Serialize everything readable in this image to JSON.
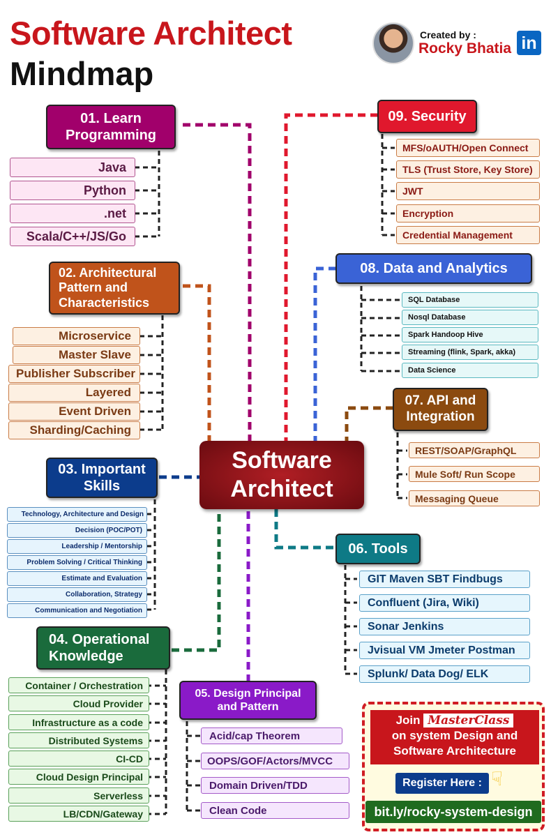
{
  "header": {
    "title_line1": "Software Architect",
    "title_line2": "Mindmap",
    "created_by": "Created by :",
    "author": "Rocky Bhatia",
    "linkedin": "in"
  },
  "center": {
    "line1": "Software",
    "line2": "Architect"
  },
  "colors": {
    "red": "#c8161c",
    "purple": "#a1006b",
    "orange": "#c0531b",
    "navy": "#0c3c8c",
    "green": "#1a6b3c",
    "violet": "#8a1ac8",
    "teal": "#0e7a86",
    "brown": "#8b4a0f",
    "blue": "#3a63d6"
  },
  "branches": {
    "b1": {
      "title": "01. Learn Programming",
      "items": [
        "Java",
        "Python",
        ".net",
        "Scala/C++/JS/Go"
      ]
    },
    "b2": {
      "title": "02. Architectural Pattern and Characteristics",
      "items": [
        "Microservice",
        "Master Slave",
        "Publisher Subscriber",
        "Layered",
        "Event Driven",
        "Sharding/Caching"
      ]
    },
    "b3": {
      "title": "03. Important Skills",
      "items": [
        "Technology, Architecture and Design",
        "Decision (POC/POT)",
        "Leadership / Mentorship",
        "Problem Solving / Critical Thinking",
        "Estimate and Evaluation",
        "Collaboration, Strategy",
        "Communication and Negotiation"
      ]
    },
    "b4": {
      "title": "04. Operational Knowledge",
      "items": [
        "Container / Orchestration",
        "Cloud Provider",
        "Infrastructure as a code",
        "Distributed Systems",
        "CI-CD",
        "Cloud Design Principal",
        "Serverless",
        "LB/CDN/Gateway"
      ]
    },
    "b5": {
      "title": "05. Design Principal and Pattern",
      "items": [
        "Acid/cap Theorem",
        "OOPS/GOF/Actors/MVCC",
        "Domain Driven/TDD",
        "Clean Code"
      ]
    },
    "b6": {
      "title": "06. Tools",
      "items": [
        "GIT Maven SBT Findbugs",
        "Confluent (Jira, Wiki)",
        "Sonar Jenkins",
        "Jvisual VM Jmeter Postman",
        "Splunk/ Data Dog/ ELK"
      ]
    },
    "b7": {
      "title": "07. API and Integration",
      "items": [
        "REST/SOAP/GraphQL",
        "Mule Soft/ Run Scope",
        "Messaging Queue"
      ]
    },
    "b8": {
      "title": "08. Data and Analytics",
      "items": [
        "SQL Database",
        "Nosql Database",
        "Spark Handoop Hive",
        "Streaming (flink, Spark, akka)",
        "Data Science"
      ]
    },
    "b9": {
      "title": "09. Security",
      "items": [
        "MFS/oAUTH/Open Connect",
        "TLS (Trust Store, Key Store)",
        "JWT",
        "Encryption",
        "Credential Management"
      ]
    }
  },
  "promo": {
    "join": "Join",
    "masterclass": "MasterClass",
    "line2": "on system Design and",
    "line3": "Software Architecture",
    "register": "Register Here :",
    "link": "bit.ly/rocky-system-design"
  }
}
